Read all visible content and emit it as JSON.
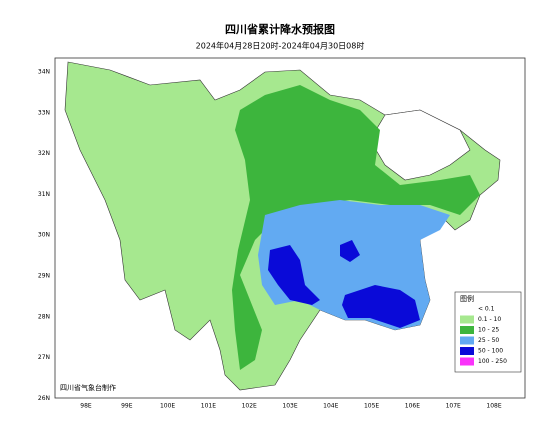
{
  "header": {
    "title": "四川省累计降水预报图",
    "subtitle": "2024年04月28日20时-2024年04月30日08时"
  },
  "axes": {
    "lon_labels": [
      "98E",
      "99E",
      "100E",
      "101E",
      "102E",
      "103E",
      "104E",
      "105E",
      "106E",
      "107E",
      "108E"
    ],
    "lat_labels": [
      "34N",
      "33N",
      "32N",
      "31N",
      "30N",
      "29N",
      "28N",
      "27N",
      "26N"
    ]
  },
  "legend": {
    "title": "图例",
    "items": [
      {
        "label": "< 0.1",
        "color": "#ffffff"
      },
      {
        "label": "0.1 - 10",
        "color": "#a6e88f"
      },
      {
        "label": "10 - 25",
        "color": "#3db53d"
      },
      {
        "label": "25 - 50",
        "color": "#62aaf2"
      },
      {
        "label": "50 - 100",
        "color": "#0a0ad8"
      },
      {
        "label": "100 - 250",
        "color": "#fa32fa"
      }
    ]
  },
  "credit": "四川省气象台制作"
}
